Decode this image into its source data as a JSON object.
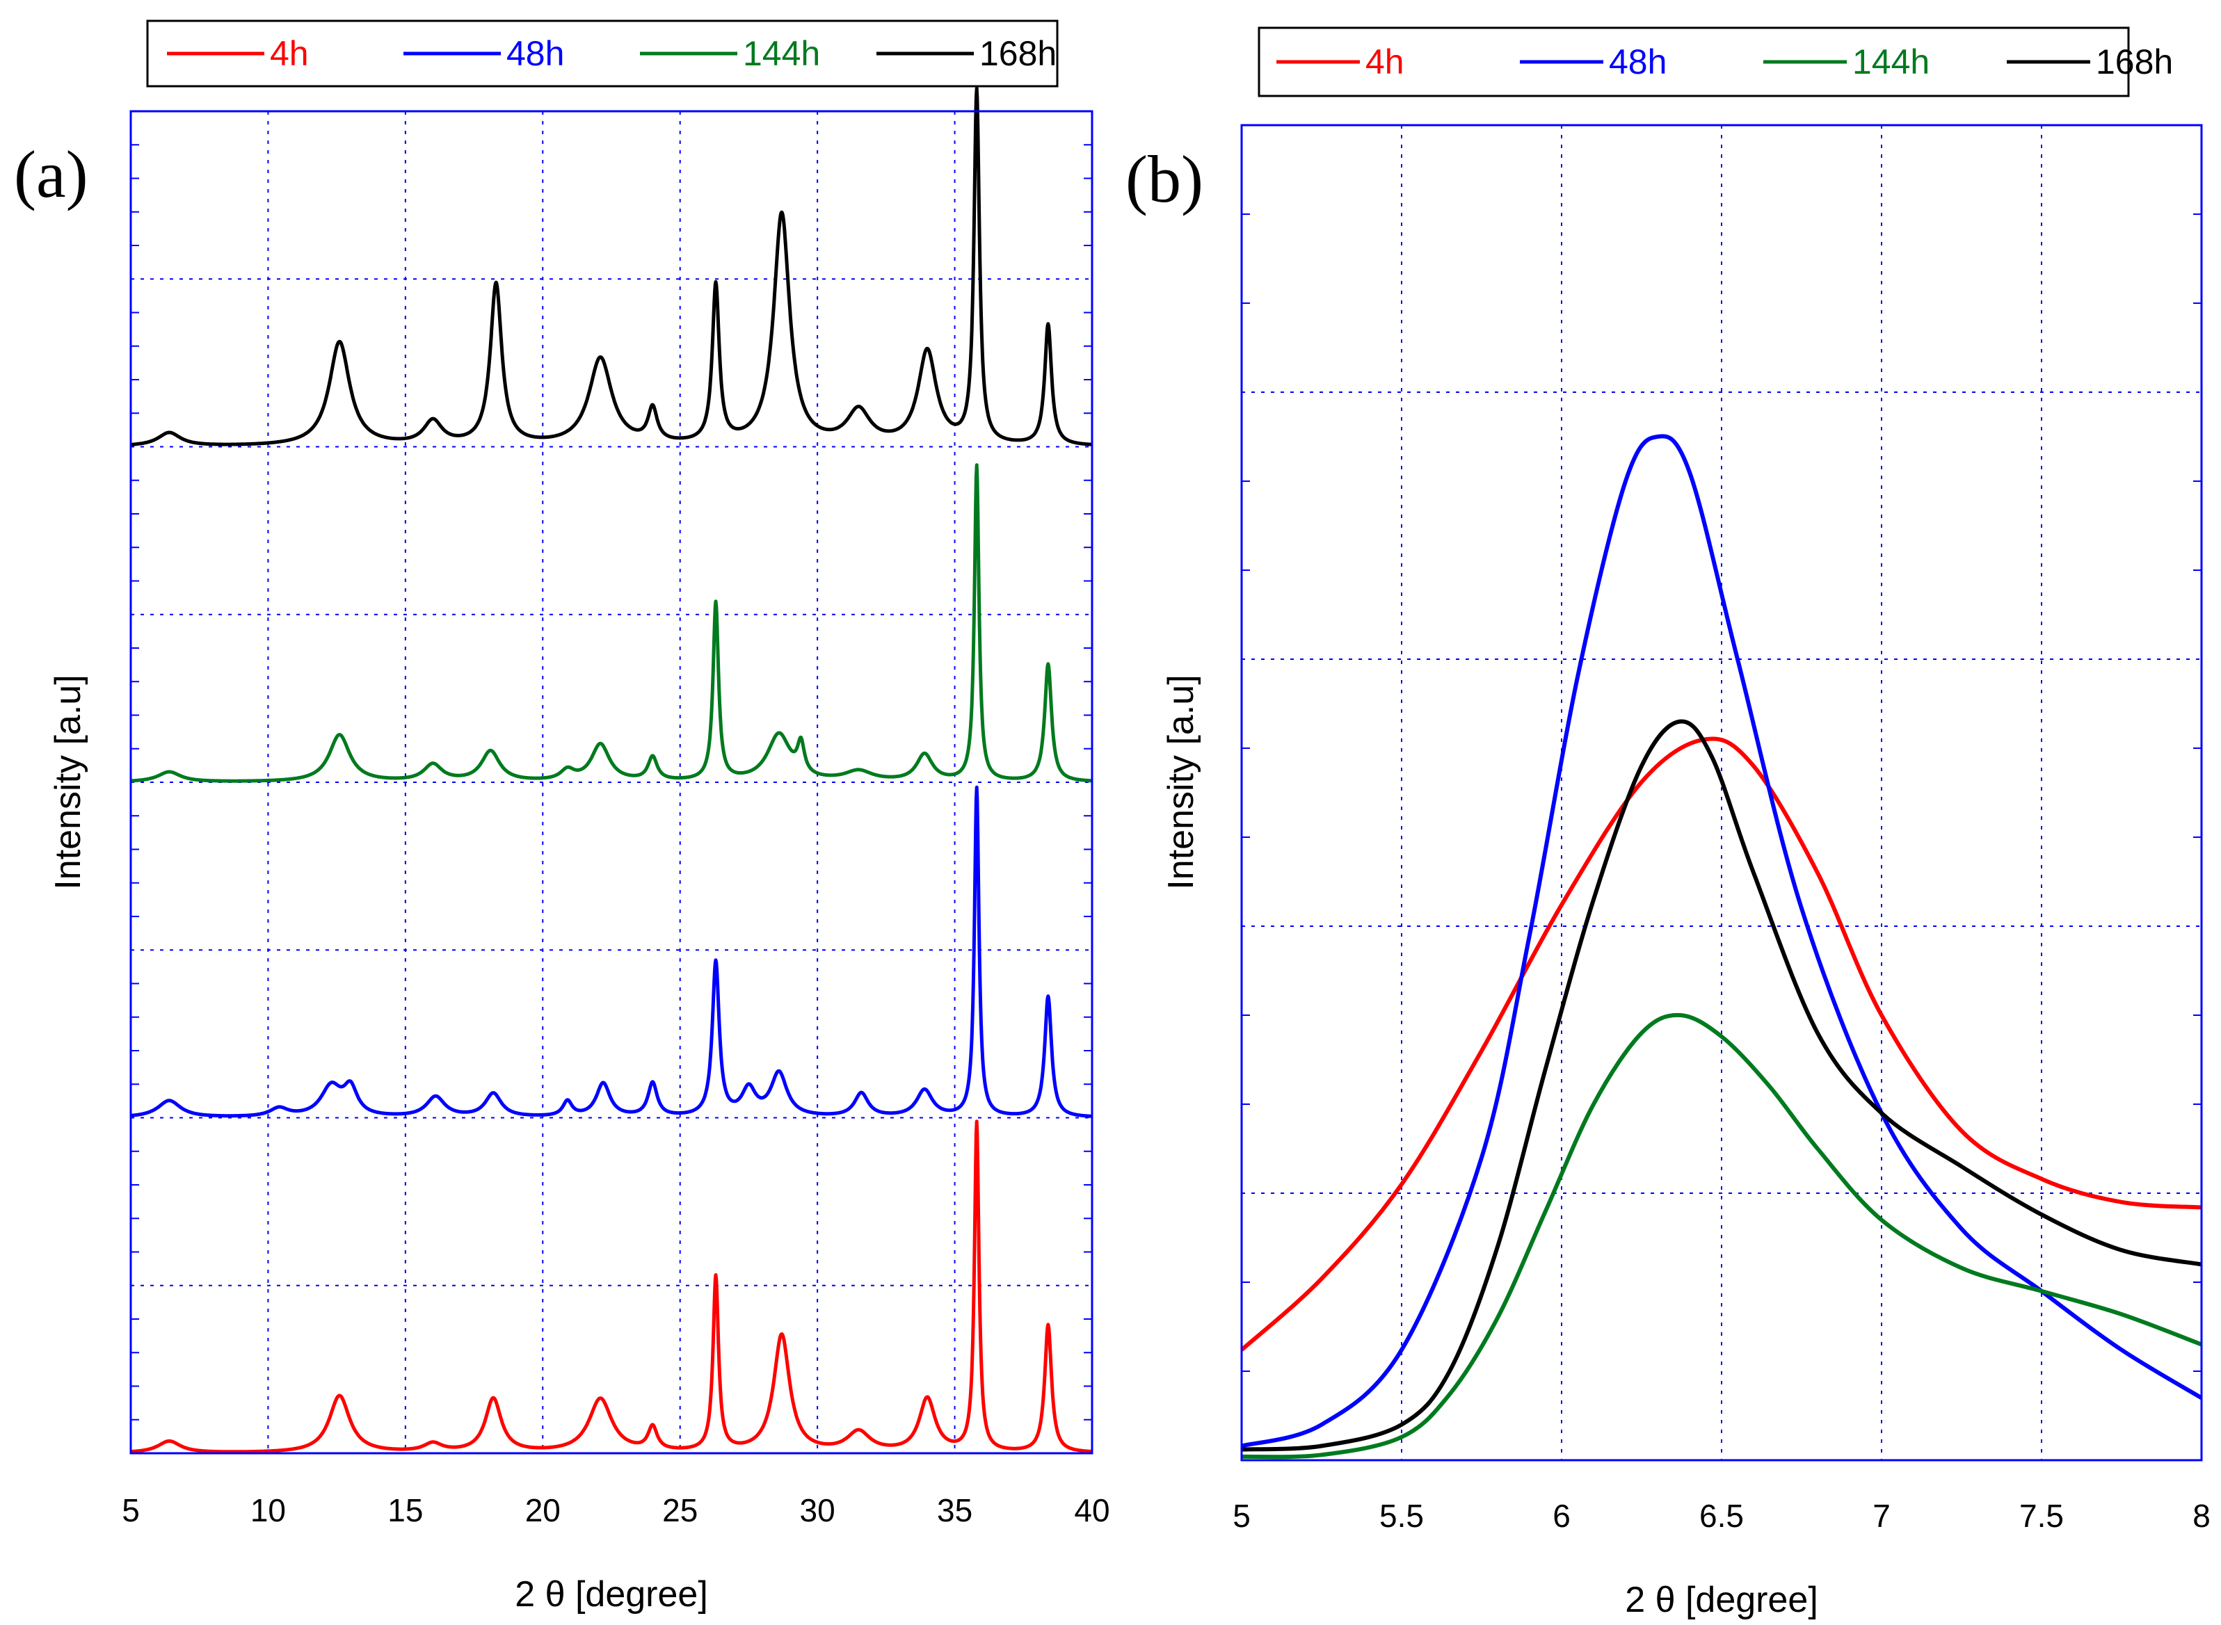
{
  "colors": {
    "red": "#ff0000",
    "blue": "#0000ff",
    "green": "#007a1e",
    "black": "#000000",
    "frame": "#0000ff",
    "grid": "#0000ff"
  },
  "chart_data": [
    {
      "type": "line",
      "panel_label": "(a)",
      "xlabel": "2 θ [degree]",
      "ylabel": "Intensity [a.u]",
      "xlim": [
        5,
        40
      ],
      "ylim": [
        0,
        40
      ],
      "grid": true,
      "legend_placement": "top",
      "x_ticks": [
        5,
        10,
        15,
        20,
        25,
        30,
        35,
        40
      ],
      "offset_baselines": {
        "4h": 0,
        "48h": 10,
        "144h": 20,
        "168h": 30
      },
      "series": [
        {
          "name": "4h",
          "color": "red",
          "baseline": 0,
          "peaks": [
            [
              6.4,
              0.35,
              0.5
            ],
            [
              12.6,
              1.7,
              0.45
            ],
            [
              16,
              0.25,
              0.4
            ],
            [
              18.2,
              1.6,
              0.35
            ],
            [
              22.1,
              1.6,
              0.5
            ],
            [
              24,
              0.7,
              0.2
            ],
            [
              26.3,
              5.2,
              0.12
            ],
            [
              28.7,
              3.5,
              0.35
            ],
            [
              31.5,
              0.6,
              0.5
            ],
            [
              34,
              1.6,
              0.35
            ],
            [
              35.8,
              9.8,
              0.1
            ],
            [
              38.4,
              3.8,
              0.15
            ]
          ]
        },
        {
          "name": "48h",
          "color": "blue",
          "baseline": 10,
          "peaks": [
            [
              6.4,
              0.5,
              0.5
            ],
            [
              10.4,
              0.25,
              0.4
            ],
            [
              12.3,
              0.9,
              0.45
            ],
            [
              13,
              0.8,
              0.3
            ],
            [
              16.1,
              0.6,
              0.4
            ],
            [
              18.2,
              0.7,
              0.35
            ],
            [
              20.9,
              0.45,
              0.2
            ],
            [
              22.2,
              1,
              0.3
            ],
            [
              24,
              1,
              0.2
            ],
            [
              26.3,
              4.6,
              0.15
            ],
            [
              27.5,
              0.8,
              0.3
            ],
            [
              28.6,
              1.3,
              0.35
            ],
            [
              31.6,
              0.7,
              0.3
            ],
            [
              33.9,
              0.8,
              0.35
            ],
            [
              35.8,
              9.8,
              0.1
            ],
            [
              38.4,
              3.6,
              0.15
            ]
          ]
        },
        {
          "name": "144h",
          "color": "green",
          "baseline": 20,
          "peaks": [
            [
              6.4,
              0.3,
              0.5
            ],
            [
              12.6,
              1.4,
              0.45
            ],
            [
              16,
              0.5,
              0.4
            ],
            [
              18.1,
              0.9,
              0.4
            ],
            [
              20.9,
              0.3,
              0.3
            ],
            [
              22.1,
              1.1,
              0.4
            ],
            [
              24,
              0.7,
              0.2
            ],
            [
              26.3,
              5.3,
              0.12
            ],
            [
              28.6,
              1.4,
              0.5
            ],
            [
              29.4,
              0.9,
              0.15
            ],
            [
              31.5,
              0.3,
              0.6
            ],
            [
              33.9,
              0.8,
              0.35
            ],
            [
              35.8,
              9.4,
              0.1
            ],
            [
              38.4,
              3.5,
              0.15
            ]
          ]
        },
        {
          "name": "168h",
          "color": "black",
          "baseline": 30,
          "peaks": [
            [
              6.4,
              0.4,
              0.5
            ],
            [
              12.6,
              3.1,
              0.45
            ],
            [
              16,
              0.7,
              0.4
            ],
            [
              18.3,
              4.8,
              0.25
            ],
            [
              22.1,
              2.6,
              0.5
            ],
            [
              24,
              1,
              0.2
            ],
            [
              26.3,
              4.7,
              0.15
            ],
            [
              28.7,
              6.9,
              0.35
            ],
            [
              31.5,
              1,
              0.5
            ],
            [
              34,
              2.8,
              0.4
            ],
            [
              35.8,
              10.5,
              0.12
            ],
            [
              38.4,
              3.6,
              0.15
            ]
          ]
        }
      ]
    },
    {
      "type": "line",
      "panel_label": "(b)",
      "xlabel": "2 θ [degree]",
      "ylabel": "Intensity [a.u]",
      "xlim": [
        5,
        8
      ],
      "ylim": [
        0,
        7.5
      ],
      "grid": true,
      "legend_placement": "top",
      "x_ticks": [
        5,
        5.5,
        6,
        6.5,
        7,
        7.5,
        8
      ],
      "series": [
        {
          "name": "4h",
          "color": "red",
          "x": [
            5,
            5.25,
            5.5,
            5.75,
            6,
            6.25,
            6.45,
            6.6,
            6.8,
            7,
            7.25,
            7.5,
            7.75,
            8
          ],
          "y": [
            0.62,
            1.02,
            1.55,
            2.3,
            3.12,
            3.81,
            4.05,
            3.9,
            3.3,
            2.5,
            1.85,
            1.58,
            1.45,
            1.42
          ]
        },
        {
          "name": "48h",
          "color": "blue",
          "x": [
            5,
            5.25,
            5.5,
            5.75,
            5.9,
            6.05,
            6.2,
            6.3,
            6.4,
            6.55,
            6.75,
            7,
            7.25,
            7.5,
            7.75,
            8
          ],
          "y": [
            0.08,
            0.2,
            0.62,
            1.7,
            2.95,
            4.4,
            5.5,
            5.75,
            5.55,
            4.5,
            3.1,
            1.95,
            1.3,
            0.95,
            0.62,
            0.35
          ]
        },
        {
          "name": "144h",
          "color": "green",
          "x": [
            5,
            5.25,
            5.5,
            5.65,
            5.8,
            5.95,
            6.1,
            6.25,
            6.37,
            6.5,
            6.65,
            6.8,
            7,
            7.25,
            7.5,
            7.75,
            8
          ],
          "y": [
            0.02,
            0.03,
            0.13,
            0.37,
            0.8,
            1.4,
            2.0,
            2.4,
            2.5,
            2.38,
            2.1,
            1.75,
            1.35,
            1.08,
            0.95,
            0.82,
            0.65
          ]
        },
        {
          "name": "168h",
          "color": "black",
          "x": [
            5,
            5.25,
            5.5,
            5.65,
            5.8,
            5.95,
            6.1,
            6.25,
            6.37,
            6.47,
            6.6,
            6.8,
            7,
            7.25,
            7.5,
            7.75,
            8
          ],
          "y": [
            0.06,
            0.08,
            0.2,
            0.5,
            1.2,
            2.2,
            3.15,
            3.9,
            4.15,
            3.95,
            3.3,
            2.4,
            1.95,
            1.65,
            1.38,
            1.18,
            1.1
          ]
        }
      ]
    }
  ]
}
